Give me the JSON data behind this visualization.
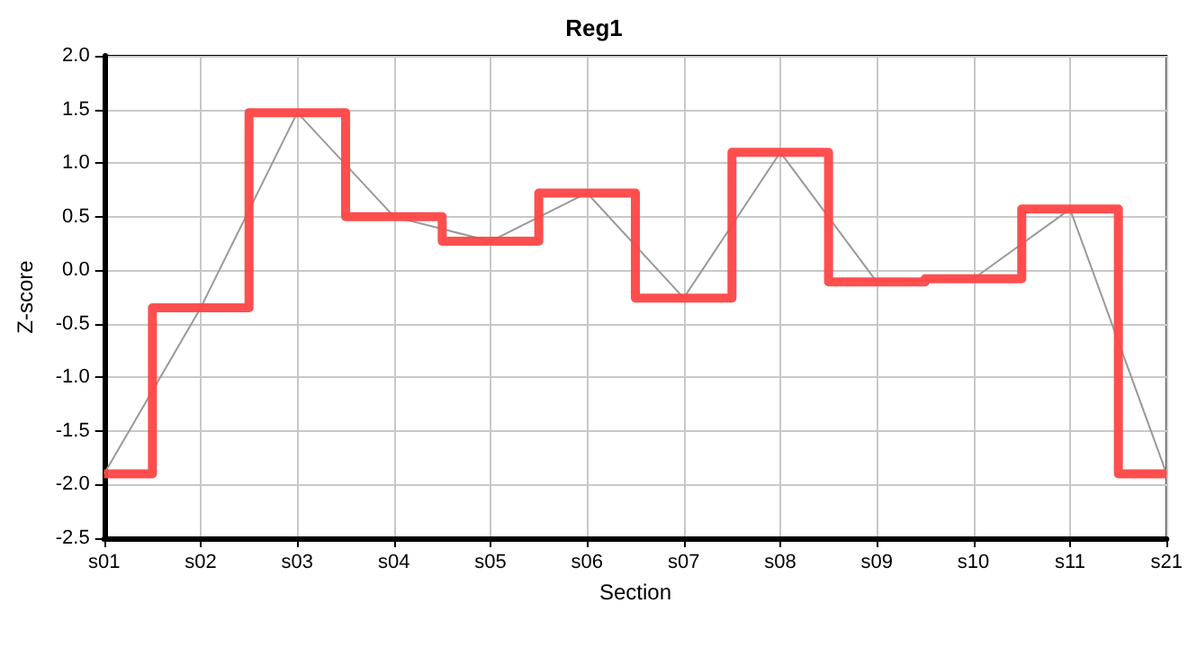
{
  "chart_data": {
    "type": "line",
    "title": "Reg1",
    "xlabel": "Section",
    "ylabel": "Z-score",
    "categories": [
      "s01",
      "s02",
      "s03",
      "s04",
      "s05",
      "s06",
      "s07",
      "s08",
      "s09",
      "s10",
      "s11",
      "s21"
    ],
    "series": [
      {
        "type": "step",
        "color": "#ff4444",
        "values": [
          -1.9,
          -0.35,
          1.47,
          0.5,
          0.27,
          0.72,
          -0.26,
          1.1,
          -0.11,
          -0.08,
          0.57,
          -1.9
        ]
      },
      {
        "color": "#999999",
        "values": [
          -1.9,
          -0.35,
          1.47,
          0.5,
          0.27,
          0.72,
          -0.26,
          1.1,
          -0.11,
          -0.08,
          0.57,
          -1.9
        ]
      }
    ],
    "ylim": [
      -2.5,
      2.0
    ],
    "yticks": [
      {
        "value": -2.5,
        "label": "-2.5"
      },
      {
        "value": -2,
        "label": "-2.0"
      },
      {
        "value": -1.5,
        "label": "-1.5"
      },
      {
        "value": -1,
        "label": "-1.0"
      },
      {
        "value": -0.5,
        "label": "-0.5"
      },
      {
        "value": 0,
        "label": "0.0"
      },
      {
        "value": 0.5,
        "label": "0.5"
      },
      {
        "value": 1,
        "label": "1.0"
      },
      {
        "value": 1.5,
        "label": "1.5"
      },
      {
        "value": 2,
        "label": "2.0"
      }
    ],
    "grid": true,
    "marker": "none",
    "line_style": "solid"
  }
}
